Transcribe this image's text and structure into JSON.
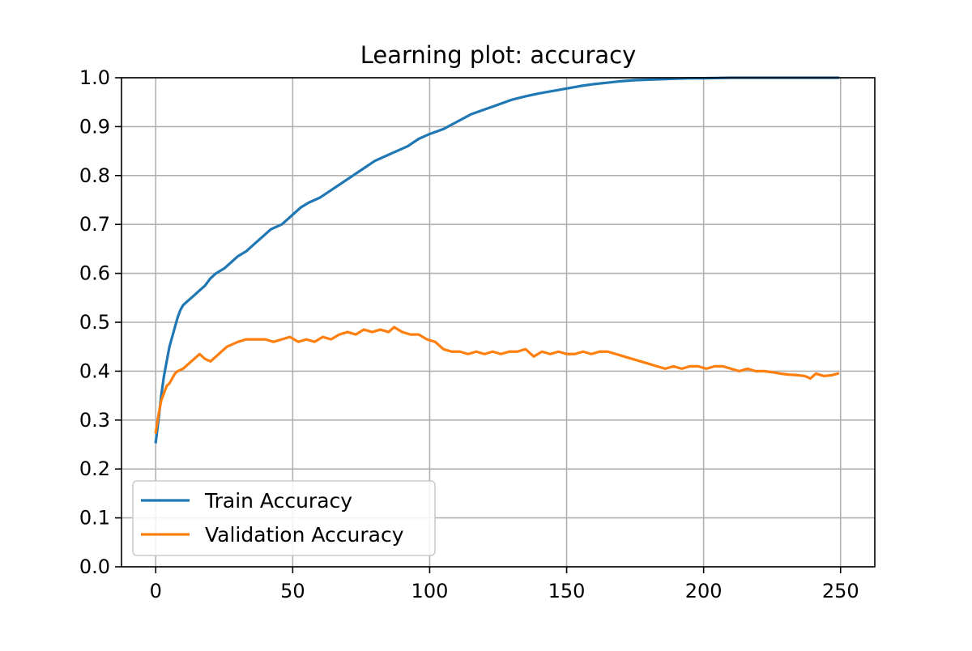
{
  "chart_data": {
    "type": "line",
    "title": "Learning plot: accuracy",
    "xlabel": "",
    "ylabel": "",
    "xlim": [
      -12.5,
      262.5
    ],
    "ylim": [
      0.0,
      1.0
    ],
    "x_ticks": [
      0,
      50,
      100,
      150,
      200,
      250
    ],
    "y_ticks": [
      0.0,
      0.1,
      0.2,
      0.3,
      0.4,
      0.5,
      0.6,
      0.7,
      0.8,
      0.9,
      1.0
    ],
    "x_tick_labels": [
      "0",
      "50",
      "100",
      "150",
      "200",
      "250"
    ],
    "y_tick_labels": [
      "0.0",
      "0.1",
      "0.2",
      "0.3",
      "0.4",
      "0.5",
      "0.6",
      "0.7",
      "0.8",
      "0.9",
      "1.0"
    ],
    "grid": true,
    "legend_position": "lower-left",
    "series": [
      {
        "name": "Train Accuracy",
        "color": "#1f77b4",
        "points": [
          [
            0,
            0.255
          ],
          [
            1,
            0.3
          ],
          [
            2,
            0.35
          ],
          [
            3,
            0.39
          ],
          [
            4,
            0.42
          ],
          [
            5,
            0.45
          ],
          [
            6,
            0.47
          ],
          [
            7,
            0.49
          ],
          [
            8,
            0.51
          ],
          [
            9,
            0.525
          ],
          [
            10,
            0.535
          ],
          [
            11,
            0.54
          ],
          [
            12,
            0.545
          ],
          [
            14,
            0.555
          ],
          [
            16,
            0.565
          ],
          [
            18,
            0.575
          ],
          [
            20,
            0.59
          ],
          [
            22,
            0.6
          ],
          [
            25,
            0.61
          ],
          [
            28,
            0.625
          ],
          [
            30,
            0.635
          ],
          [
            33,
            0.645
          ],
          [
            36,
            0.66
          ],
          [
            38,
            0.67
          ],
          [
            40,
            0.68
          ],
          [
            42,
            0.69
          ],
          [
            44,
            0.695
          ],
          [
            46,
            0.7
          ],
          [
            48,
            0.71
          ],
          [
            50,
            0.72
          ],
          [
            53,
            0.735
          ],
          [
            56,
            0.745
          ],
          [
            60,
            0.755
          ],
          [
            64,
            0.77
          ],
          [
            68,
            0.785
          ],
          [
            72,
            0.8
          ],
          [
            76,
            0.815
          ],
          [
            80,
            0.83
          ],
          [
            84,
            0.84
          ],
          [
            88,
            0.85
          ],
          [
            92,
            0.86
          ],
          [
            96,
            0.875
          ],
          [
            100,
            0.885
          ],
          [
            105,
            0.895
          ],
          [
            110,
            0.91
          ],
          [
            115,
            0.925
          ],
          [
            120,
            0.935
          ],
          [
            125,
            0.945
          ],
          [
            130,
            0.955
          ],
          [
            135,
            0.962
          ],
          [
            140,
            0.968
          ],
          [
            145,
            0.973
          ],
          [
            150,
            0.978
          ],
          [
            155,
            0.983
          ],
          [
            160,
            0.987
          ],
          [
            165,
            0.99
          ],
          [
            170,
            0.993
          ],
          [
            175,
            0.995
          ],
          [
            180,
            0.996
          ],
          [
            185,
            0.997
          ],
          [
            190,
            0.998
          ],
          [
            195,
            0.999
          ],
          [
            200,
            0.999
          ],
          [
            210,
            1.0
          ],
          [
            220,
            1.0
          ],
          [
            230,
            1.0
          ],
          [
            240,
            1.0
          ],
          [
            249,
            1.0
          ]
        ]
      },
      {
        "name": "Validation Accuracy",
        "color": "#ff7f0e",
        "points": [
          [
            0,
            0.275
          ],
          [
            1,
            0.31
          ],
          [
            2,
            0.34
          ],
          [
            3,
            0.355
          ],
          [
            4,
            0.37
          ],
          [
            5,
            0.375
          ],
          [
            6,
            0.385
          ],
          [
            7,
            0.395
          ],
          [
            8,
            0.4
          ],
          [
            10,
            0.405
          ],
          [
            12,
            0.415
          ],
          [
            14,
            0.425
          ],
          [
            16,
            0.435
          ],
          [
            17,
            0.43
          ],
          [
            18,
            0.425
          ],
          [
            20,
            0.42
          ],
          [
            22,
            0.43
          ],
          [
            24,
            0.44
          ],
          [
            26,
            0.45
          ],
          [
            28,
            0.455
          ],
          [
            30,
            0.46
          ],
          [
            33,
            0.465
          ],
          [
            36,
            0.465
          ],
          [
            40,
            0.465
          ],
          [
            43,
            0.46
          ],
          [
            46,
            0.465
          ],
          [
            49,
            0.47
          ],
          [
            52,
            0.46
          ],
          [
            55,
            0.465
          ],
          [
            58,
            0.46
          ],
          [
            61,
            0.47
          ],
          [
            64,
            0.465
          ],
          [
            67,
            0.475
          ],
          [
            70,
            0.48
          ],
          [
            73,
            0.475
          ],
          [
            76,
            0.485
          ],
          [
            79,
            0.48
          ],
          [
            82,
            0.485
          ],
          [
            85,
            0.48
          ],
          [
            87,
            0.49
          ],
          [
            90,
            0.48
          ],
          [
            93,
            0.475
          ],
          [
            96,
            0.475
          ],
          [
            99,
            0.465
          ],
          [
            102,
            0.46
          ],
          [
            105,
            0.445
          ],
          [
            108,
            0.44
          ],
          [
            111,
            0.44
          ],
          [
            114,
            0.435
          ],
          [
            117,
            0.44
          ],
          [
            120,
            0.435
          ],
          [
            123,
            0.44
          ],
          [
            126,
            0.435
          ],
          [
            129,
            0.44
          ],
          [
            132,
            0.44
          ],
          [
            135,
            0.445
          ],
          [
            138,
            0.43
          ],
          [
            141,
            0.44
          ],
          [
            144,
            0.435
          ],
          [
            147,
            0.44
          ],
          [
            150,
            0.435
          ],
          [
            153,
            0.435
          ],
          [
            156,
            0.44
          ],
          [
            159,
            0.435
          ],
          [
            162,
            0.44
          ],
          [
            165,
            0.44
          ],
          [
            168,
            0.435
          ],
          [
            171,
            0.43
          ],
          [
            174,
            0.425
          ],
          [
            177,
            0.42
          ],
          [
            180,
            0.415
          ],
          [
            183,
            0.41
          ],
          [
            186,
            0.405
          ],
          [
            189,
            0.41
          ],
          [
            192,
            0.405
          ],
          [
            195,
            0.41
          ],
          [
            198,
            0.41
          ],
          [
            201,
            0.405
          ],
          [
            204,
            0.41
          ],
          [
            207,
            0.41
          ],
          [
            210,
            0.405
          ],
          [
            213,
            0.4
          ],
          [
            216,
            0.405
          ],
          [
            219,
            0.4
          ],
          [
            222,
            0.4
          ],
          [
            225,
            0.398
          ],
          [
            228,
            0.395
          ],
          [
            231,
            0.393
          ],
          [
            234,
            0.392
          ],
          [
            237,
            0.39
          ],
          [
            239,
            0.385
          ],
          [
            241,
            0.395
          ],
          [
            244,
            0.39
          ],
          [
            247,
            0.392
          ],
          [
            249,
            0.395
          ]
        ]
      }
    ]
  }
}
